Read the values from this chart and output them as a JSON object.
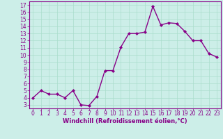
{
  "x": [
    0,
    1,
    2,
    3,
    4,
    5,
    6,
    7,
    8,
    9,
    10,
    11,
    12,
    13,
    14,
    15,
    16,
    17,
    18,
    19,
    20,
    21,
    22,
    23
  ],
  "y": [
    4.0,
    5.0,
    4.5,
    4.5,
    4.0,
    5.0,
    3.0,
    2.9,
    4.2,
    7.8,
    7.8,
    11.1,
    13.0,
    13.0,
    13.2,
    16.8,
    14.2,
    14.5,
    14.4,
    13.3,
    12.0,
    12.0,
    10.2,
    9.7
  ],
  "line_color": "#880088",
  "marker": "D",
  "marker_size": 2,
  "linewidth": 1.0,
  "bg_color": "#cceee8",
  "grid_color": "#aaddcc",
  "xlabel": "Windchill (Refroidissement éolien,°C)",
  "xlabel_color": "#880088",
  "tick_color": "#880088",
  "xlim": [
    -0.5,
    23.5
  ],
  "ylim": [
    2.5,
    17.5
  ],
  "yticks": [
    3,
    4,
    5,
    6,
    7,
    8,
    9,
    10,
    11,
    12,
    13,
    14,
    15,
    16,
    17
  ],
  "xticks": [
    0,
    1,
    2,
    3,
    4,
    5,
    6,
    7,
    8,
    9,
    10,
    11,
    12,
    13,
    14,
    15,
    16,
    17,
    18,
    19,
    20,
    21,
    22,
    23
  ],
  "tick_fontsize": 5.5,
  "xlabel_fontsize": 6.0,
  "axis_line_color": "#880088"
}
